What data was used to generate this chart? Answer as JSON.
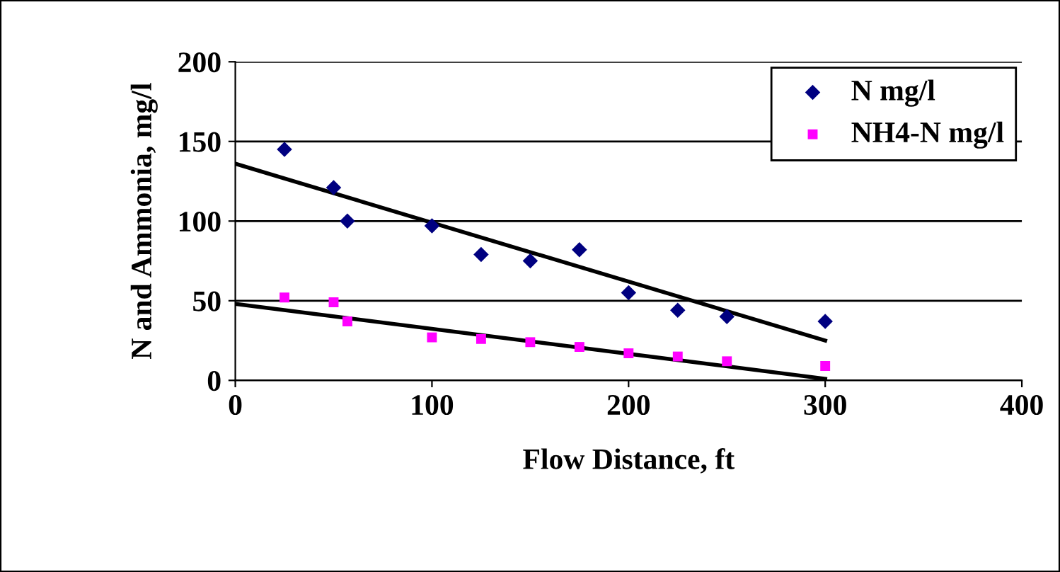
{
  "chart_data": {
    "type": "scatter",
    "xlabel": "Flow Distance, ft",
    "ylabel": "N and Ammonia, mg/l",
    "xlim": [
      0,
      400
    ],
    "xticks": [
      0,
      100,
      200,
      300,
      400
    ],
    "ylim": [
      0,
      200
    ],
    "yticks": [
      0,
      50,
      100,
      150,
      200
    ],
    "grid": "y",
    "legend": "top right",
    "series": [
      {
        "name": "N mg/l",
        "color": "#000080",
        "marker": "diamond",
        "x": [
          25,
          50,
          57,
          100,
          125,
          150,
          175,
          200,
          225,
          250,
          300
        ],
        "values": [
          145,
          121,
          100,
          97,
          79,
          75,
          82,
          55,
          44,
          40,
          37
        ]
      },
      {
        "name": "NH4-N mg/l",
        "color": "#ff00ff",
        "marker": "square",
        "x": [
          25,
          50,
          57,
          100,
          125,
          150,
          175,
          200,
          225,
          250,
          300
        ],
        "values": [
          52,
          49,
          37,
          27,
          26,
          24,
          21,
          17,
          15,
          12,
          9
        ]
      },
      {
        "type": "line",
        "color": "#000000",
        "x": [
          0,
          300
        ],
        "values": [
          136,
          25
        ]
      },
      {
        "type": "line",
        "color": "#000000",
        "x": [
          0,
          300
        ],
        "values": [
          48,
          1
        ]
      }
    ]
  }
}
